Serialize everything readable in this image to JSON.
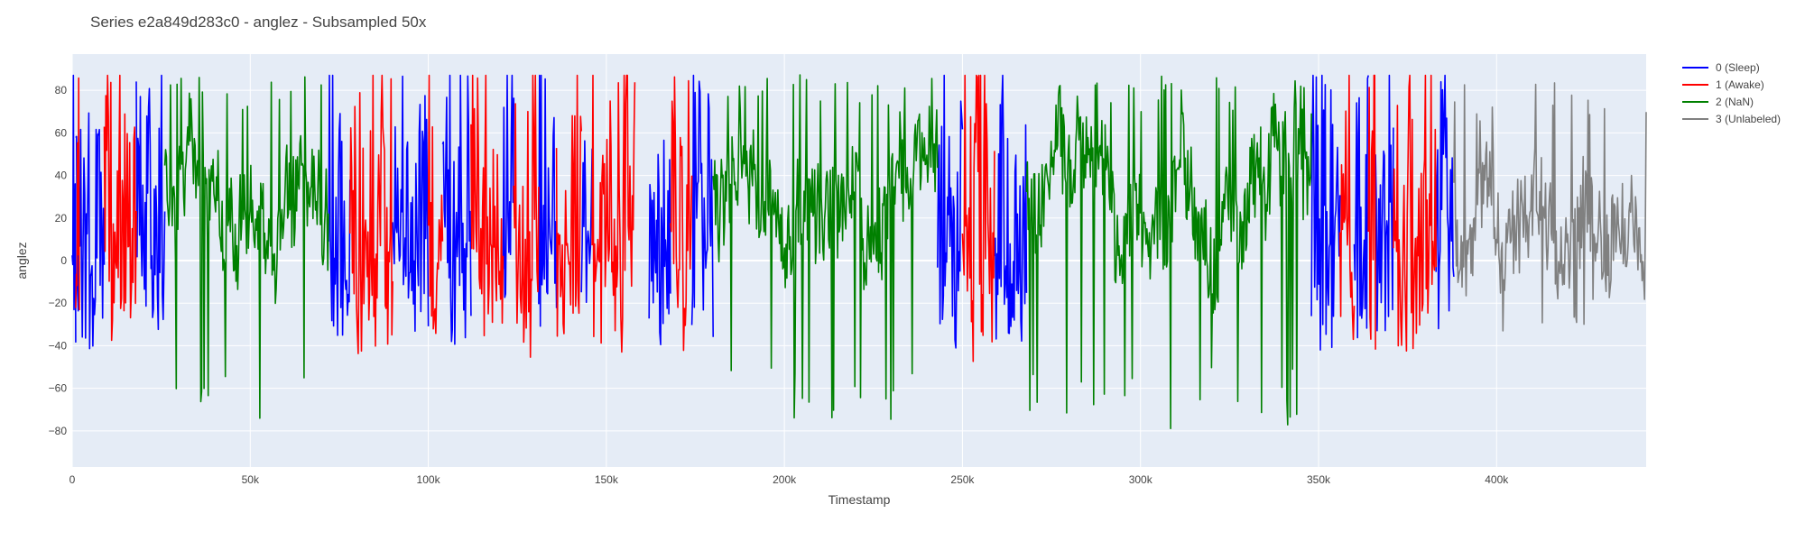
{
  "chart_data": {
    "type": "line",
    "title": "Series e2a849d283c0 - anglez - Subsampled 50x",
    "xlabel": "Timestamp",
    "ylabel": "anglez",
    "xlim": [
      0,
      442000
    ],
    "ylim": [
      -97,
      97
    ],
    "x_ticks": [
      0,
      50000,
      100000,
      150000,
      200000,
      250000,
      300000,
      350000,
      400000
    ],
    "x_tick_labels": [
      "0",
      "50k",
      "100k",
      "150k",
      "200k",
      "250k",
      "300k",
      "350k",
      "400k"
    ],
    "y_ticks": [
      -80,
      -60,
      -40,
      -20,
      0,
      20,
      40,
      60,
      80
    ],
    "y_tick_labels": [
      "−80",
      "−60",
      "−40",
      "−20",
      "0",
      "20",
      "40",
      "60",
      "80"
    ],
    "grid": true,
    "legend_position": "top-right",
    "plot_background": "#e5ecf6",
    "series": [
      {
        "name": "0 (Sleep)",
        "color": "#0000ff",
        "segments": [
          [
            0,
            1000
          ],
          [
            1000,
            9000
          ],
          [
            18000,
            26000
          ],
          [
            72000,
            78000
          ],
          [
            90000,
            100000
          ],
          [
            104000,
            112000
          ],
          [
            121000,
            124000
          ],
          [
            131000,
            136000
          ],
          [
            143000,
            146000
          ],
          [
            162000,
            168000
          ],
          [
            174000,
            180000
          ],
          [
            243000,
            250000
          ],
          [
            259000,
            268000
          ],
          [
            348000,
            356000
          ],
          [
            360000,
            364000
          ],
          [
            366000,
            371000
          ],
          [
            383000,
            388000
          ]
        ],
        "y_range": [
          -88,
          87
        ]
      },
      {
        "name": "1 (Awake)",
        "color": "#ff0000",
        "segments": [
          [
            1000,
            2000
          ],
          [
            9000,
            18000
          ],
          [
            78000,
            90000
          ],
          [
            100000,
            104000
          ],
          [
            112000,
            121000
          ],
          [
            124000,
            131000
          ],
          [
            136000,
            143000
          ],
          [
            146000,
            158000
          ],
          [
            168000,
            174000
          ],
          [
            250000,
            259000
          ],
          [
            356000,
            360000
          ],
          [
            364000,
            366000
          ],
          [
            371000,
            383000
          ]
        ],
        "y_range": [
          -86,
          87
        ]
      },
      {
        "name": "2 (NaN)",
        "color": "#008000",
        "segments": [
          [
            26000,
            72000
          ],
          [
            180000,
            243000
          ],
          [
            268000,
            348000
          ]
        ],
        "y_range": [
          -79,
          88
        ]
      },
      {
        "name": "3 (Unlabeled)",
        "color": "#808080",
        "segments": [
          [
            388000,
            442000
          ]
        ],
        "y_range": [
          -33,
          85
        ]
      }
    ]
  }
}
